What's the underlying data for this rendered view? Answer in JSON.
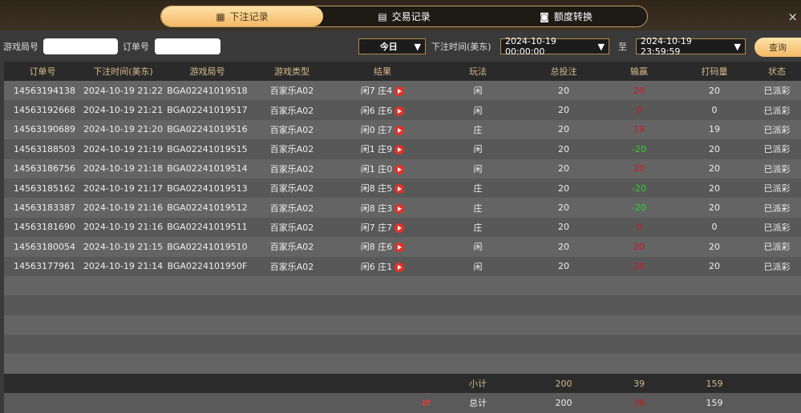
{
  "tabs": [
    {
      "label": "下注记录",
      "icon": "calendar-icon",
      "active": true
    },
    {
      "label": "交易记录",
      "icon": "clipboard-icon"
    },
    {
      "label": "额度转换",
      "icon": "coins-icon"
    }
  ],
  "close": "×",
  "filter": {
    "game_no_label": "游戏局号",
    "game_no_value": "",
    "order_no_label": "订单号",
    "order_no_value": "",
    "range": "今日",
    "time_label": "下注时间(美东)",
    "start": "2024-10-19 00:00:00",
    "to": "至",
    "end": "2024-10-19 23:59:59",
    "query": "查询"
  },
  "columns": [
    "订单号",
    "下注时间(美东)",
    "游戏局号",
    "游戏类型",
    "结果",
    "玩法",
    "总投注",
    "输赢",
    "打码量",
    "状态"
  ],
  "rows": [
    [
      "14563194138",
      "2024-10-19 21:22",
      "BGA02241019518",
      "百家乐A02",
      "闲7 庄4",
      "闲",
      "20",
      "20",
      "20",
      "已派彩",
      "red"
    ],
    [
      "14563192668",
      "2024-10-19 21:21",
      "BGA02241019517",
      "百家乐A02",
      "闲6 庄6",
      "闲",
      "20",
      "0",
      "0",
      "已派彩",
      "red"
    ],
    [
      "14563190689",
      "2024-10-19 21:20",
      "BGA02241019516",
      "百家乐A02",
      "闲0 庄7",
      "庄",
      "20",
      "19",
      "19",
      "已派彩",
      "red"
    ],
    [
      "14563188503",
      "2024-10-19 21:19",
      "BGA02241019515",
      "百家乐A02",
      "闲1 庄9",
      "闲",
      "20",
      "-20",
      "20",
      "已派彩",
      "green"
    ],
    [
      "14563186756",
      "2024-10-19 21:18",
      "BGA02241019514",
      "百家乐A02",
      "闲1 庄0",
      "闲",
      "20",
      "20",
      "20",
      "已派彩",
      "red"
    ],
    [
      "14563185162",
      "2024-10-19 21:17",
      "BGA02241019513",
      "百家乐A02",
      "闲8 庄5",
      "庄",
      "20",
      "-20",
      "20",
      "已派彩",
      "green"
    ],
    [
      "14563183387",
      "2024-10-19 21:16",
      "BGA02241019512",
      "百家乐A02",
      "闲8 庄3",
      "庄",
      "20",
      "-20",
      "20",
      "已派彩",
      "green"
    ],
    [
      "14563181690",
      "2024-10-19 21:16",
      "BGA02241019511",
      "百家乐A02",
      "闲7 庄7",
      "庄",
      "20",
      "0",
      "0",
      "已派彩",
      "red"
    ],
    [
      "14563180054",
      "2024-10-19 21:15",
      "BGA02241019510",
      "百家乐A02",
      "闲8 庄6",
      "闲",
      "20",
      "20",
      "20",
      "已派彩",
      "red"
    ],
    [
      "14563177961",
      "2024-10-19 21:14",
      "BGA0224101950F",
      "百家乐A02",
      "闲6 庄1",
      "闲",
      "20",
      "20",
      "20",
      "已派彩",
      "red"
    ]
  ],
  "subtotal": {
    "label": "小计",
    "bet": "200",
    "winloss": "39",
    "code": "159"
  },
  "total": {
    "label": "总计",
    "bet": "200",
    "winloss": "39",
    "code": "159",
    "icon": "refresh-icon"
  }
}
